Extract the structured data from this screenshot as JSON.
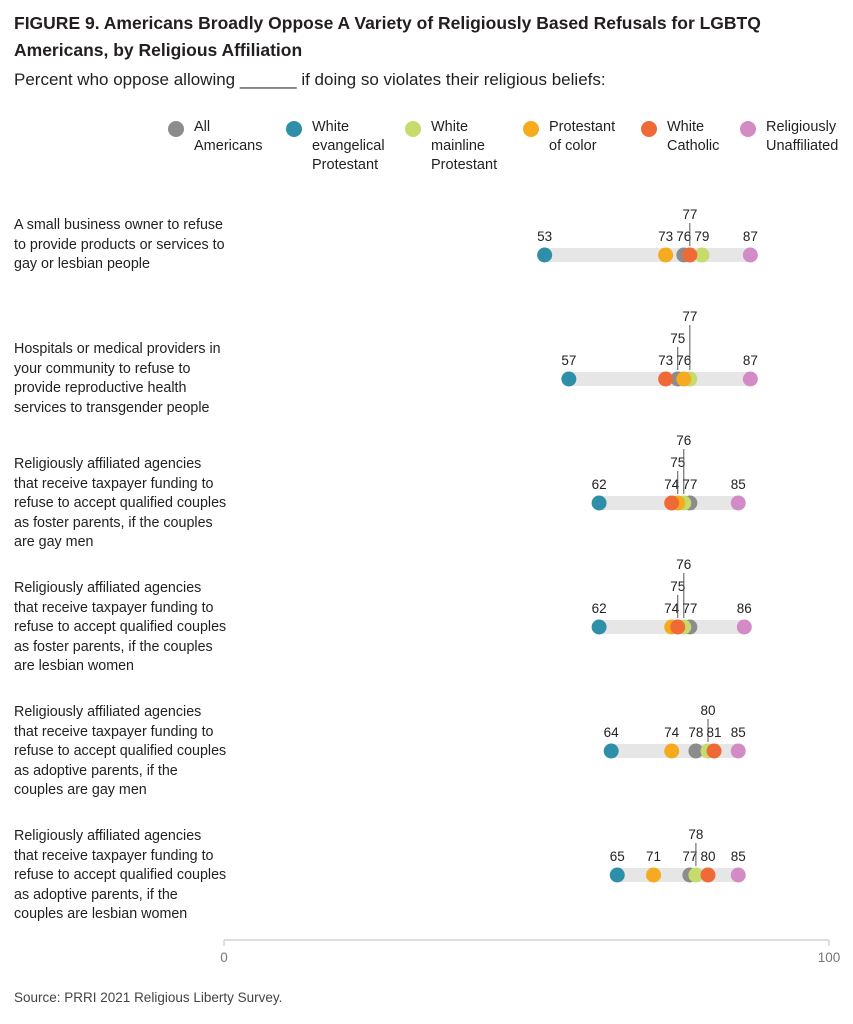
{
  "title": "FIGURE 9.  Americans Broadly Oppose A Variety of Religiously Based Refusals for LGBTQ Americans, by Religious Affiliation",
  "subtitle": "Percent who oppose allowing ______ if doing so violates their religious beliefs:",
  "source": "Source: PRRI 2021 Religious Liberty Survey.",
  "legend": [
    {
      "label": "All\nAmericans",
      "color": "#8c8c8c"
    },
    {
      "label": "White\nevangelical\nProtestant",
      "color": "#2e8fa8"
    },
    {
      "label": "White\nmainline\nProtestant",
      "color": "#c5dc6c"
    },
    {
      "label": "Protestant\nof color",
      "color": "#f5ab1d"
    },
    {
      "label": "White\nCatholic",
      "color": "#ef6a36"
    },
    {
      "label": "Religiously\nUnaffiliated",
      "color": "#d38bc6"
    }
  ],
  "chart_data": {
    "type": "scatter",
    "xlim": [
      0,
      100
    ],
    "xticks": [
      "0",
      "100"
    ],
    "series": [
      {
        "name": "All Americans",
        "color": "#8c8c8c"
      },
      {
        "name": "White evangelical Protestant",
        "color": "#2e8fa8"
      },
      {
        "name": "White mainline Protestant",
        "color": "#c5dc6c"
      },
      {
        "name": "Protestant of color",
        "color": "#f5ab1d"
      },
      {
        "name": "White Catholic",
        "color": "#ef6a36"
      },
      {
        "name": "Religiously Unaffiliated",
        "color": "#d38bc6"
      }
    ],
    "categories": [
      "A small business owner to refuse to provide products or services to gay or lesbian people",
      "Hospitals or medical providers in your community to refuse to provide reproductive health services to transgender people",
      "Religiously affiliated agencies that receive taxpayer funding to refuse to accept qualified couples as foster parents, if the couples are gay men",
      "Religiously affiliated agencies that receive taxpayer funding to refuse to accept qualified couples as foster parents, if the couples are lesbian women",
      "Religiously affiliated agencies that receive taxpayer funding to refuse to accept qualified couples as adoptive parents, if the couples are gay men",
      "Religiously affiliated agencies that receive taxpayer funding to refuse to accept qualified couples as adoptive parents, if the couples are lesbian women"
    ],
    "values": [
      [
        76,
        53,
        79,
        73,
        77,
        87
      ],
      [
        75,
        57,
        77,
        76,
        73,
        87
      ],
      [
        77,
        62,
        76,
        75,
        74,
        85
      ],
      [
        77,
        62,
        76,
        74,
        75,
        86
      ],
      [
        78,
        64,
        80,
        74,
        81,
        85
      ],
      [
        77,
        65,
        78,
        71,
        80,
        85
      ]
    ]
  }
}
